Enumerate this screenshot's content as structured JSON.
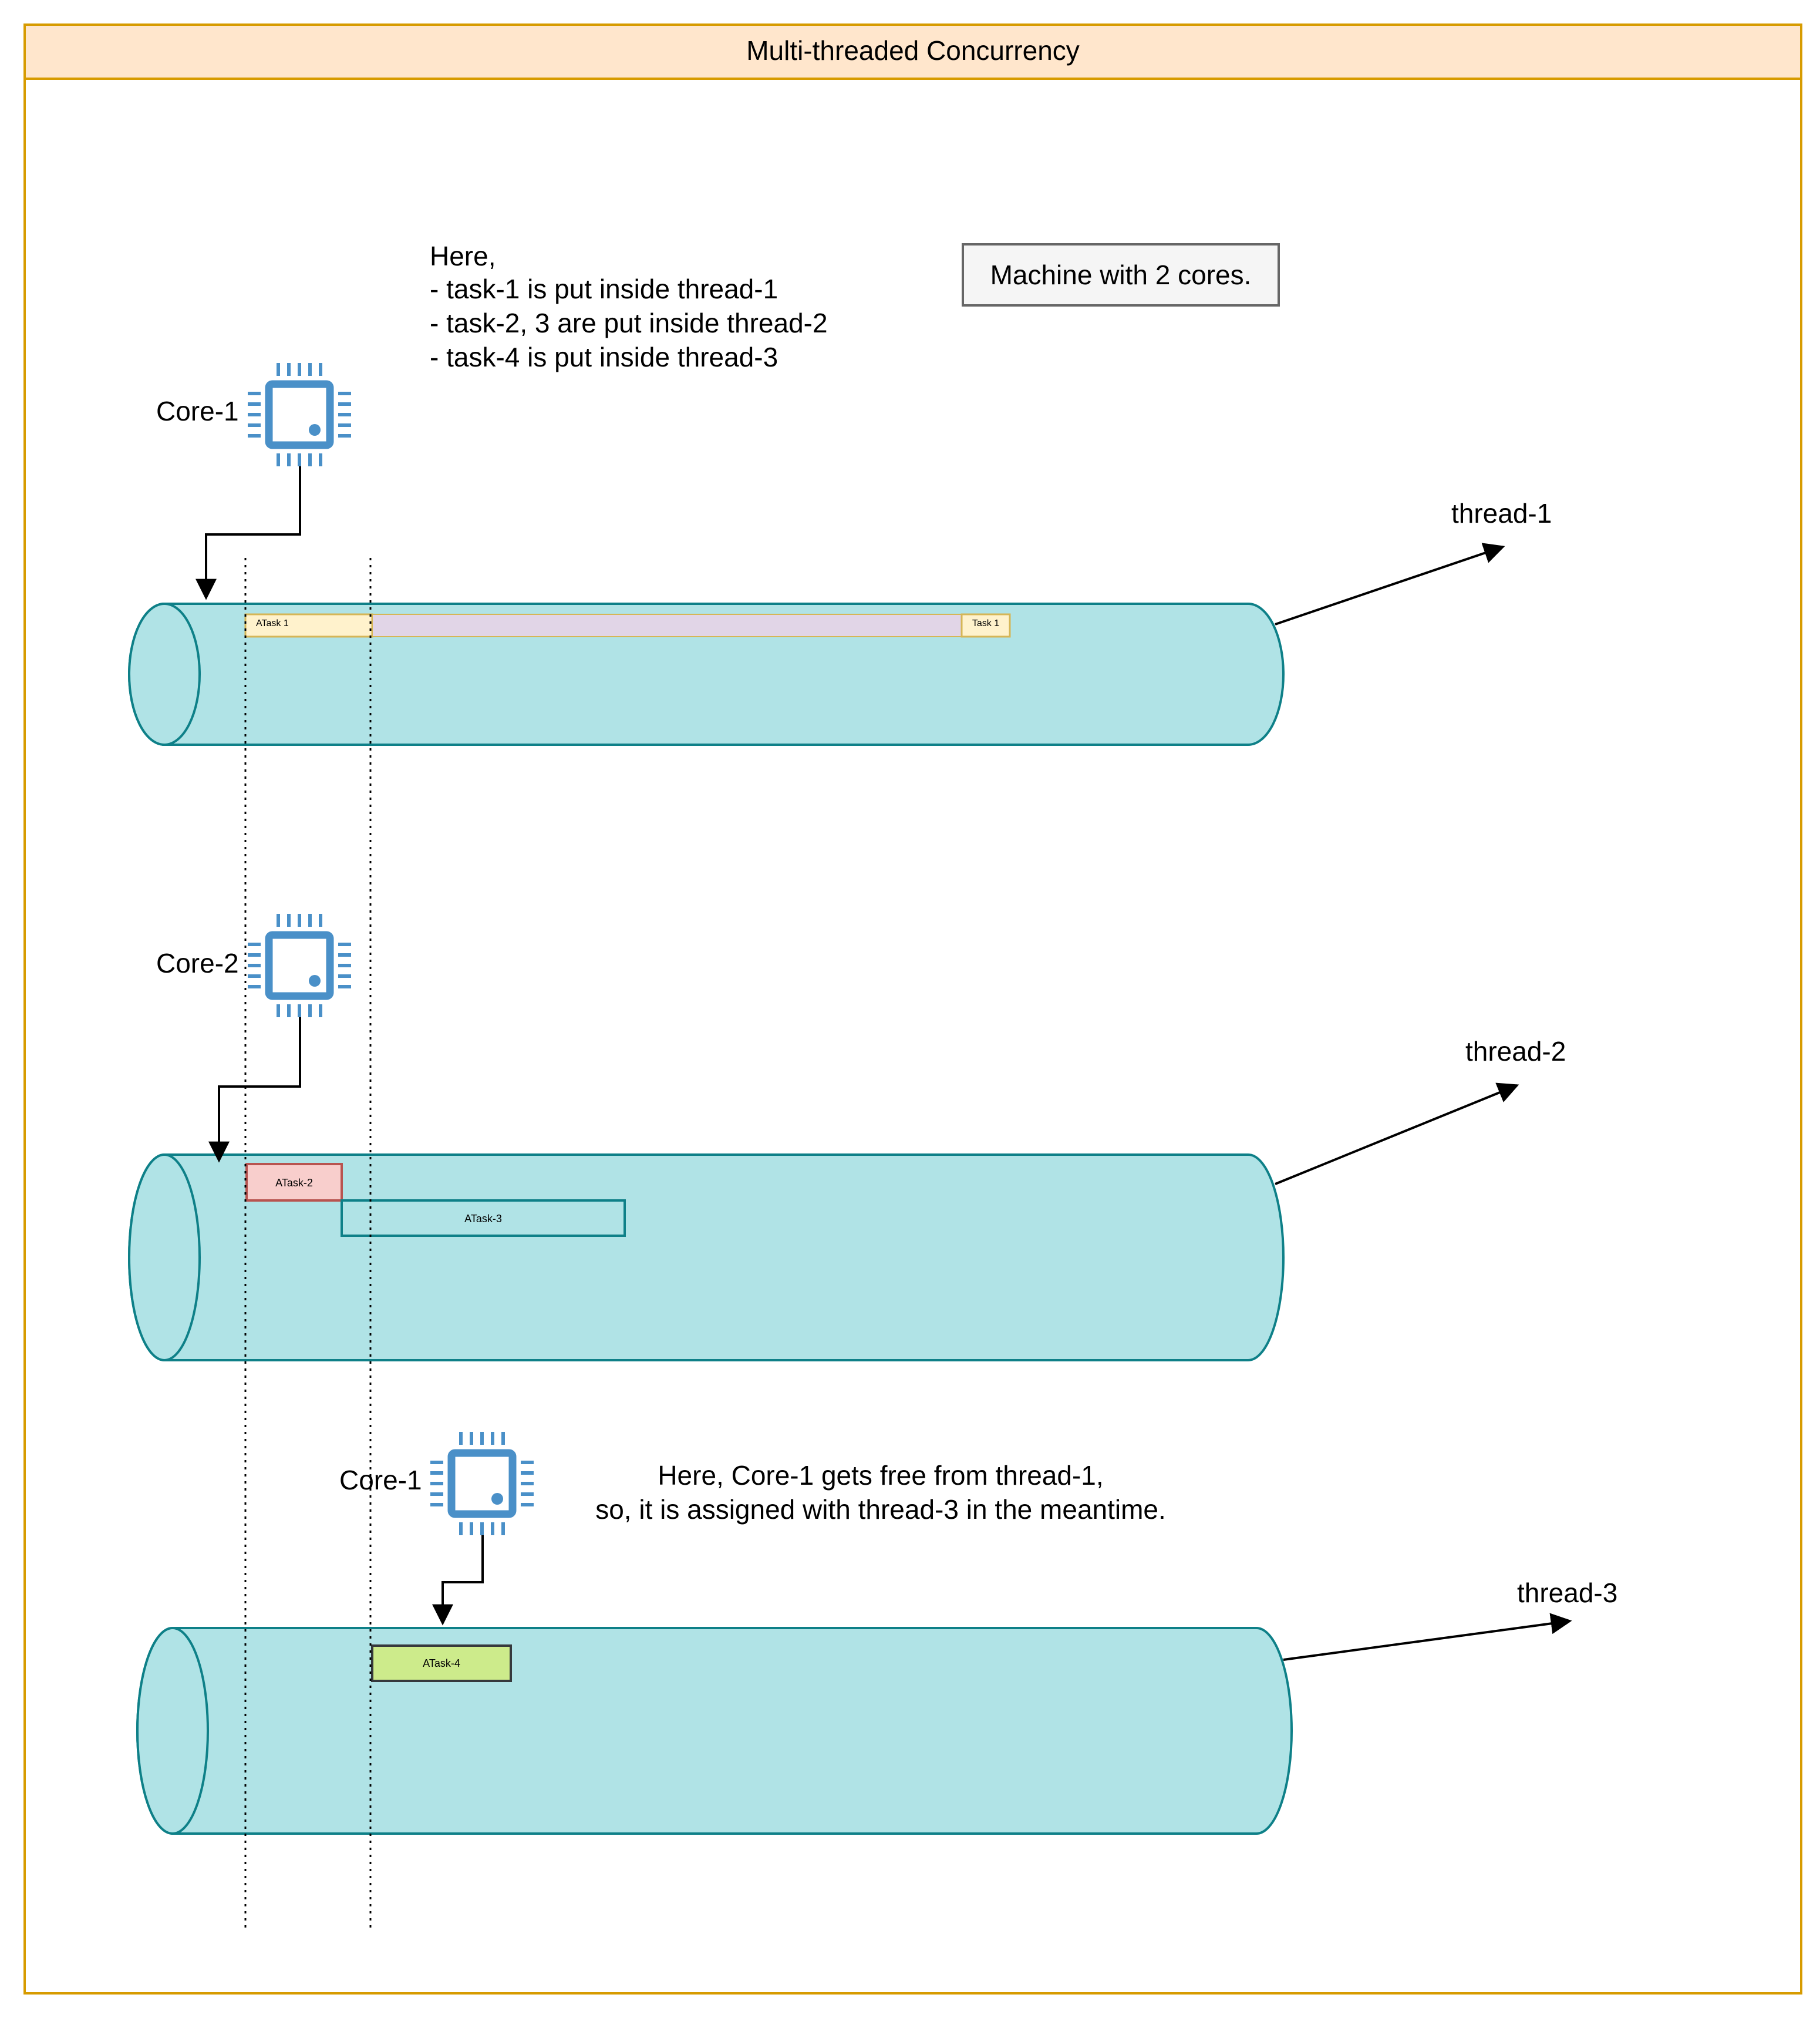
{
  "title": "Multi-threaded Concurrency",
  "note_top_lines": [
    "Here,",
    "- task-1 is put inside thread-1",
    "- task-2, 3 are put inside thread-2",
    "- task-4 is put inside thread-3"
  ],
  "machine_label": "Machine with 2 cores.",
  "note_bottom_lines": [
    "Here, Core-1 gets free from thread-1,",
    "so, it is assigned with thread-3 in the meantime."
  ],
  "cores": {
    "core_1_top": "Core-1",
    "core_2": "Core-2",
    "core_1_bottom": "Core-1"
  },
  "threads": {
    "thread_1": "thread-1",
    "thread_2": "thread-2",
    "thread_3": "thread-3"
  },
  "tasks": {
    "atask_1": "ATask 1",
    "task_1": "Task 1",
    "atask_2": "ATask-2",
    "atask_3": "ATask-3",
    "atask_4": "ATask-4"
  },
  "colors": {
    "frame_border": "#d79b00",
    "title_fill": "#ffe6cc",
    "cylinder_fill": "#b0e3e6",
    "cylinder_stroke": "#0e8088",
    "cpu_icon": "#4a90c8",
    "atask_1_fill": "#fff2cc",
    "atask_1_stroke": "#d6b656",
    "await_fill": "#e1d5e7",
    "atask_2_fill": "#f8cecc",
    "atask_2_stroke": "#b85450",
    "atask_3_stroke": "#0e8088",
    "atask_4_fill": "#cdeb8b",
    "atask_4_stroke": "#36393d",
    "machine_fill": "#f5f5f5",
    "machine_stroke": "#666666"
  }
}
